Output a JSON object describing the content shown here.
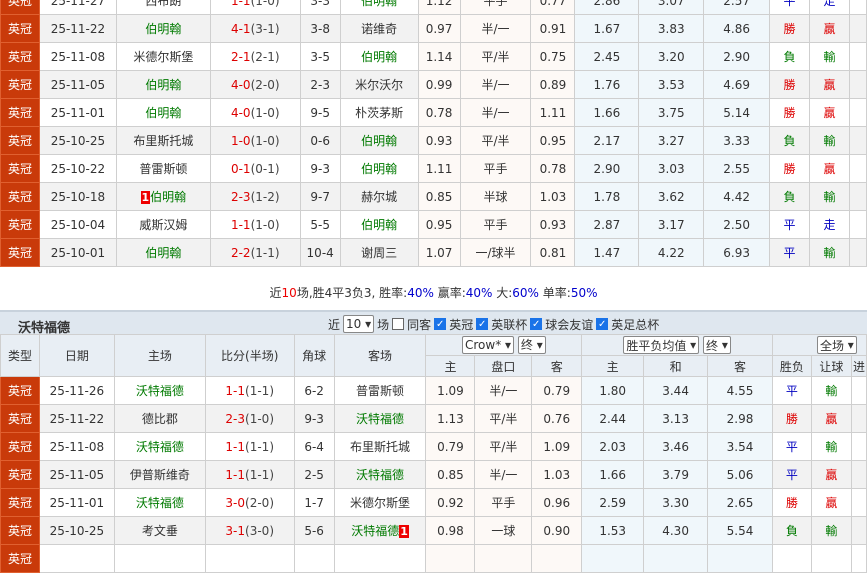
{
  "top_rows": [
    {
      "type": "英冠",
      "date": "25-11-27",
      "home": "西布朗",
      "hg": false,
      "score": "1-1",
      "half": "(1-0)",
      "corner": "3-3",
      "away": "伯明翰",
      "ag": true,
      "o": [
        "1.12",
        "平手",
        "0.77",
        "2.86",
        "3.07",
        "2.57"
      ],
      "res": "平",
      "ah": "走"
    },
    {
      "type": "英冠",
      "date": "25-11-22",
      "home": "伯明翰",
      "hg": true,
      "score": "4-1",
      "half": "(3-1)",
      "corner": "3-8",
      "away": "诺维奇",
      "ag": false,
      "o": [
        "0.97",
        "半/一",
        "0.91",
        "1.67",
        "3.83",
        "4.86"
      ],
      "res": "勝",
      "ah": "贏"
    },
    {
      "type": "英冠",
      "date": "25-11-08",
      "home": "米德尔斯堡",
      "hg": false,
      "score": "2-1",
      "half": "(2-1)",
      "corner": "3-5",
      "away": "伯明翰",
      "ag": true,
      "o": [
        "1.14",
        "平/半",
        "0.75",
        "2.45",
        "3.20",
        "2.90"
      ],
      "res": "負",
      "ah": "輸"
    },
    {
      "type": "英冠",
      "date": "25-11-05",
      "home": "伯明翰",
      "hg": true,
      "score": "4-0",
      "half": "(2-0)",
      "corner": "2-3",
      "away": "米尔沃尔",
      "ag": false,
      "o": [
        "0.99",
        "半/一",
        "0.89",
        "1.76",
        "3.53",
        "4.69"
      ],
      "res": "勝",
      "ah": "贏"
    },
    {
      "type": "英冠",
      "date": "25-11-01",
      "home": "伯明翰",
      "hg": true,
      "score": "4-0",
      "half": "(1-0)",
      "corner": "9-5",
      "away": "朴茨茅斯",
      "ag": false,
      "o": [
        "0.78",
        "半/一",
        "1.11",
        "1.66",
        "3.75",
        "5.14"
      ],
      "res": "勝",
      "ah": "贏"
    },
    {
      "type": "英冠",
      "date": "25-10-25",
      "home": "布里斯托城",
      "hg": false,
      "score": "1-0",
      "half": "(1-0)",
      "corner": "0-6",
      "away": "伯明翰",
      "ag": true,
      "o": [
        "0.93",
        "平/半",
        "0.95",
        "2.17",
        "3.27",
        "3.33"
      ],
      "res": "負",
      "ah": "輸"
    },
    {
      "type": "英冠",
      "date": "25-10-22",
      "home": "普雷斯顿",
      "hg": false,
      "score": "0-1",
      "half": "(0-1)",
      "corner": "9-3",
      "away": "伯明翰",
      "ag": true,
      "o": [
        "1.11",
        "平手",
        "0.78",
        "2.90",
        "3.03",
        "2.55"
      ],
      "res": "勝",
      "ah": "贏"
    },
    {
      "type": "英冠",
      "date": "25-10-18",
      "home": "伯明翰",
      "hg": true,
      "home_card": "1",
      "score": "2-3",
      "half": "(1-2)",
      "corner": "9-7",
      "away": "赫尔城",
      "ag": false,
      "o": [
        "0.85",
        "半球",
        "1.03",
        "1.78",
        "3.62",
        "4.42"
      ],
      "res": "負",
      "ah": "輸"
    },
    {
      "type": "英冠",
      "date": "25-10-04",
      "home": "威斯汉姆",
      "hg": false,
      "score": "1-1",
      "half": "(1-0)",
      "corner": "5-5",
      "away": "伯明翰",
      "ag": true,
      "o": [
        "0.95",
        "平手",
        "0.93",
        "2.87",
        "3.17",
        "2.50"
      ],
      "res": "平",
      "ah": "走"
    },
    {
      "type": "英冠",
      "date": "25-10-01",
      "home": "伯明翰",
      "hg": true,
      "score": "2-2",
      "half": "(1-1)",
      "corner": "10-4",
      "away": "谢周三",
      "ag": false,
      "o": [
        "1.07",
        "一/球半",
        "0.81",
        "1.47",
        "4.22",
        "6.93"
      ],
      "res": "平",
      "ah": "輸"
    }
  ],
  "summary": {
    "p1": "近",
    "n": "10",
    "p2": "场,胜4平3负3, 胜率:",
    "win": "40%",
    "p3": " 赢率:",
    "ying": "40%",
    "p4": " 大:",
    "da": "60%",
    "p5": " 单率:",
    "dan": "50%"
  },
  "section2": {
    "title": "沃特福德",
    "near": "近",
    "count": "10",
    "chang": "场",
    "same_away": "同客",
    "filters": [
      "英冠",
      "英联杯",
      "球会友谊",
      "英足总杯"
    ],
    "headers": {
      "type": "类型",
      "date": "日期",
      "home": "主场",
      "score": "比分(半场)",
      "corner": "角球",
      "away": "客场",
      "company": "Crow*",
      "final1": "终",
      "avg": "胜平负均值",
      "final2": "终",
      "scope": "全场",
      "sub": [
        "主",
        "盘口",
        "客",
        "主",
        "和",
        "客",
        "胜负",
        "让球",
        "进"
      ]
    }
  },
  "bottom_rows": [
    {
      "type": "英冠",
      "date": "25-11-26",
      "home": "沃特福德",
      "hg": true,
      "score": "1-1",
      "half": "(1-1)",
      "corner": "6-2",
      "away": "普雷斯顿",
      "ag": false,
      "o": [
        "1.09",
        "半/一",
        "0.79",
        "1.80",
        "3.44",
        "4.55"
      ],
      "res": "平",
      "ah": "輸"
    },
    {
      "type": "英冠",
      "date": "25-11-22",
      "home": "德比郡",
      "hg": false,
      "score": "2-3",
      "half": "(1-0)",
      "corner": "9-3",
      "away": "沃特福德",
      "ag": true,
      "o": [
        "1.13",
        "平/半",
        "0.76",
        "2.44",
        "3.13",
        "2.98"
      ],
      "res": "勝",
      "ah": "贏"
    },
    {
      "type": "英冠",
      "date": "25-11-08",
      "home": "沃特福德",
      "hg": true,
      "score": "1-1",
      "half": "(1-1)",
      "corner": "6-4",
      "away": "布里斯托城",
      "ag": false,
      "o": [
        "0.79",
        "平/半",
        "1.09",
        "2.03",
        "3.46",
        "3.54"
      ],
      "res": "平",
      "ah": "輸"
    },
    {
      "type": "英冠",
      "date": "25-11-05",
      "home": "伊普斯维奇",
      "hg": false,
      "score": "1-1",
      "half": "(1-1)",
      "corner": "2-5",
      "away": "沃特福德",
      "ag": true,
      "o": [
        "0.85",
        "半/一",
        "1.03",
        "1.66",
        "3.79",
        "5.06"
      ],
      "res": "平",
      "ah": "贏"
    },
    {
      "type": "英冠",
      "date": "25-11-01",
      "home": "沃特福德",
      "hg": true,
      "score": "3-0",
      "half": "(2-0)",
      "corner": "1-7",
      "away": "米德尔斯堡",
      "ag": false,
      "o": [
        "0.92",
        "平手",
        "0.96",
        "2.59",
        "3.30",
        "2.65"
      ],
      "res": "勝",
      "ah": "贏"
    },
    {
      "type": "英冠",
      "date": "25-10-25",
      "home": "考文垂",
      "hg": false,
      "score": "3-1",
      "half": "(3-0)",
      "corner": "5-6",
      "away": "沃特福德",
      "ag": true,
      "away_card": "1",
      "o": [
        "0.98",
        "一球",
        "0.90",
        "1.53",
        "4.30",
        "5.54"
      ],
      "res": "負",
      "ah": "輸"
    },
    {
      "type": "英冠",
      "date": "",
      "home": "",
      "hg": false,
      "score": "",
      "half": "",
      "corner": "",
      "away": "",
      "ag": false,
      "o": [
        "",
        "",
        "",
        "",
        "",
        ""
      ],
      "res": "",
      "ah": ""
    }
  ]
}
